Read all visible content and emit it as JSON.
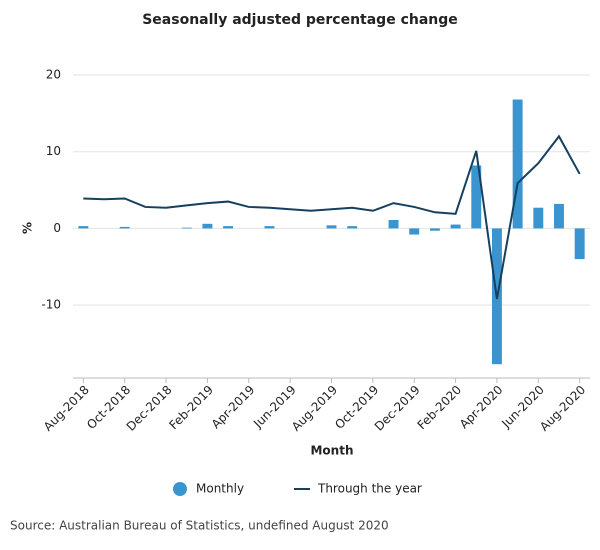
{
  "chart_data": {
    "type": "bar_line",
    "title": "Seasonally adjusted percentage change",
    "x_label": "Month",
    "y_label": "%",
    "source": "Source: Australian Bureau of Statistics, undefined August 2020",
    "categories": [
      "Aug-2018",
      null,
      "Oct-2018",
      null,
      "Dec-2018",
      null,
      "Feb-2019",
      null,
      "Apr-2019",
      null,
      "Jun-2019",
      null,
      "Aug-2019",
      null,
      "Oct-2019",
      null,
      "Dec-2019",
      null,
      "Feb-2020",
      null,
      "Apr-2020",
      null,
      "Jun-2020",
      null,
      "Aug-2020"
    ],
    "series": [
      {
        "name": "Monthly",
        "type": "bar",
        "color": "#3a94cf",
        "values": [
          0.3,
          0.0,
          0.2,
          0.0,
          0.0,
          0.1,
          0.6,
          0.3,
          0.0,
          0.3,
          0.0,
          0.0,
          0.4,
          0.3,
          0.0,
          1.1,
          -0.8,
          -0.3,
          0.5,
          8.2,
          -17.7,
          16.8,
          2.7,
          3.2,
          -4.0
        ]
      },
      {
        "name": "Through the year",
        "type": "line",
        "color": "#15405f",
        "values": [
          3.9,
          3.8,
          3.9,
          2.8,
          2.7,
          3.0,
          3.3,
          3.5,
          2.8,
          2.7,
          2.5,
          2.3,
          2.5,
          2.7,
          2.3,
          3.3,
          2.8,
          2.1,
          1.9,
          10.1,
          -9.2,
          5.9,
          8.5,
          12.0,
          7.1
        ]
      }
    ],
    "ylim": [
      -19.5,
      20
    ],
    "yticks": [
      -10,
      0,
      10,
      20
    ],
    "grid": true,
    "legend": "bottom"
  }
}
